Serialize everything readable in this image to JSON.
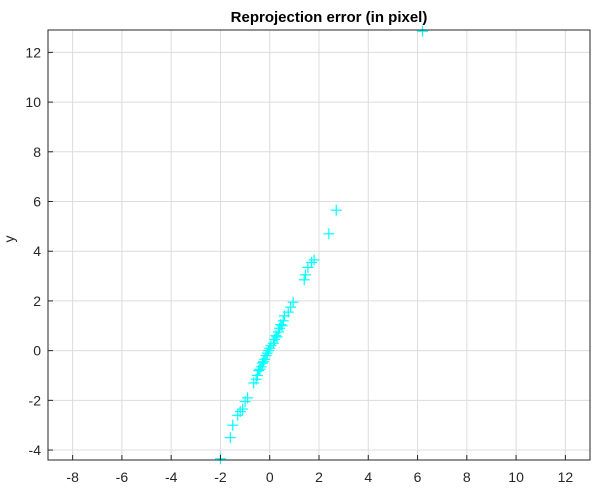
{
  "chart_data": {
    "type": "scatter",
    "title": "Reprojection error (in pixel)",
    "xlabel": "",
    "ylabel": "y",
    "xlim": [
      -9,
      13
    ],
    "ylim": [
      -4.4,
      12.9
    ],
    "xticks": [
      -8,
      -6,
      -4,
      -2,
      0,
      2,
      4,
      6,
      8,
      10,
      12
    ],
    "yticks": [
      -4,
      -2,
      0,
      2,
      4,
      6,
      8,
      10,
      12
    ],
    "xtick_labels": [
      "-8",
      "-6",
      "-4",
      "-2",
      "0",
      "2",
      "4",
      "6",
      "8",
      "10",
      "12"
    ],
    "ytick_labels": [
      "-4",
      "-2",
      "0",
      "2",
      "4",
      "6",
      "8",
      "10",
      "12"
    ],
    "grid": true,
    "marker": "+",
    "series": [
      {
        "color": "#00ffff",
        "points": [
          [
            6.2,
            12.85
          ],
          [
            2.7,
            5.65
          ],
          [
            2.4,
            4.7
          ],
          [
            1.8,
            3.65
          ],
          [
            1.7,
            3.55
          ],
          [
            1.55,
            3.35
          ],
          [
            1.45,
            3.05
          ],
          [
            1.4,
            2.85
          ],
          [
            0.95,
            1.95
          ],
          [
            0.85,
            1.75
          ],
          [
            0.75,
            1.55
          ],
          [
            0.6,
            1.4
          ],
          [
            0.55,
            1.2
          ],
          [
            0.45,
            1.05
          ],
          [
            0.4,
            0.9
          ],
          [
            0.35,
            0.75
          ],
          [
            0.25,
            0.6
          ],
          [
            0.2,
            0.45
          ],
          [
            0.15,
            0.3
          ],
          [
            0.05,
            0.2
          ],
          [
            0.0,
            0.1
          ],
          [
            -0.05,
            0.0
          ],
          [
            -0.1,
            -0.1
          ],
          [
            -0.15,
            -0.2
          ],
          [
            -0.2,
            -0.35
          ],
          [
            -0.3,
            -0.5
          ],
          [
            -0.35,
            -0.65
          ],
          [
            -0.45,
            -0.8
          ],
          [
            -0.5,
            -1.0
          ],
          [
            -0.55,
            -1.15
          ],
          [
            -0.65,
            -1.3
          ],
          [
            -0.9,
            -1.9
          ],
          [
            -1.0,
            -2.05
          ],
          [
            -1.1,
            -2.35
          ],
          [
            -1.2,
            -2.45
          ],
          [
            -1.3,
            -2.6
          ],
          [
            -1.5,
            -3.0
          ],
          [
            -1.6,
            -3.5
          ],
          [
            -2.0,
            -4.35
          ],
          [
            0.3,
            0.55
          ],
          [
            -0.25,
            -0.45
          ],
          [
            0.5,
            1.0
          ],
          [
            -0.4,
            -0.75
          ]
        ]
      }
    ]
  }
}
